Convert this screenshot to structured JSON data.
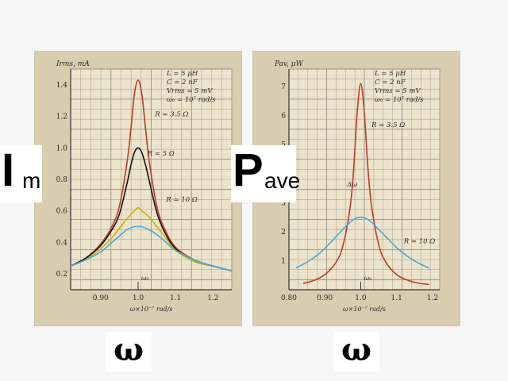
{
  "labels": {
    "left_symbol": "I",
    "left_subscript": "m",
    "right_symbol": "P",
    "right_subscript": "ave",
    "omega_left": "ω",
    "omega_right": "ω"
  },
  "colors": {
    "panel": "#d9cdb0",
    "grid": "#9a9488",
    "axis": "#333333",
    "red_curve": "#c0392b",
    "black_curve": "#111111",
    "yellow_curve": "#c9b400",
    "blue_curve": "#4aa8d6",
    "text": "#2a2a2a"
  },
  "chart_data": [
    {
      "type": "line",
      "ylabel": "Irms, mA",
      "xlabel": "ω×10⁻⁷ rad/s",
      "xlim": [
        0.82,
        1.25
      ],
      "ylim": [
        0.1,
        1.5
      ],
      "xticks": [
        0.9,
        1.0,
        1.1,
        1.2
      ],
      "xtick_labels": [
        "0.90",
        "1.0",
        "1.1",
        "1.2"
      ],
      "yticks": [
        0.2,
        0.4,
        0.6,
        0.8,
        1.0,
        1.2,
        1.4
      ],
      "ytick_labels": [
        "0.2",
        "0.4",
        "0.6",
        "0.8",
        "1.0",
        "1.2",
        "1.4"
      ],
      "params": [
        "L = 5 μH",
        "C = 2 nF",
        "Vrms = 5 mV",
        "ω₀ = 10⁷ rad/s"
      ],
      "annotations": {
        "r1": "R = 3.5 Ω",
        "r2": "R = 5 Ω",
        "r3": "R = 10 Ω",
        "omega0": "ω₀"
      },
      "series": [
        {
          "color_key": "red_curve",
          "x": [
            0.82,
            0.86,
            0.9,
            0.93,
            0.95,
            0.97,
            0.98,
            0.99,
            1.0,
            1.01,
            1.02,
            1.03,
            1.05,
            1.07,
            1.1,
            1.15,
            1.2,
            1.25
          ],
          "y": [
            0.25,
            0.3,
            0.39,
            0.5,
            0.63,
            0.9,
            1.1,
            1.34,
            1.43,
            1.34,
            1.12,
            0.91,
            0.63,
            0.49,
            0.37,
            0.29,
            0.25,
            0.22
          ]
        },
        {
          "color_key": "black_curve",
          "x": [
            0.82,
            0.86,
            0.9,
            0.93,
            0.95,
            0.97,
            0.98,
            0.99,
            1.0,
            1.01,
            1.02,
            1.03,
            1.05,
            1.07,
            1.1,
            1.15,
            1.2,
            1.25
          ],
          "y": [
            0.25,
            0.3,
            0.38,
            0.48,
            0.58,
            0.77,
            0.88,
            0.97,
            1.0,
            0.97,
            0.89,
            0.79,
            0.59,
            0.47,
            0.36,
            0.28,
            0.25,
            0.22
          ]
        },
        {
          "color_key": "yellow_curve",
          "x": [
            0.82,
            0.86,
            0.9,
            0.93,
            0.95,
            0.97,
            0.99,
            1.0,
            1.01,
            1.03,
            1.05,
            1.07,
            1.1,
            1.15,
            1.2,
            1.25
          ],
          "y": [
            0.25,
            0.29,
            0.36,
            0.43,
            0.49,
            0.55,
            0.6,
            0.62,
            0.6,
            0.56,
            0.5,
            0.44,
            0.35,
            0.28,
            0.25,
            0.22
          ]
        },
        {
          "color_key": "blue_curve",
          "x": [
            0.82,
            0.86,
            0.9,
            0.93,
            0.95,
            0.97,
            0.99,
            1.0,
            1.01,
            1.03,
            1.05,
            1.07,
            1.1,
            1.15,
            1.2,
            1.25
          ],
          "y": [
            0.25,
            0.29,
            0.34,
            0.4,
            0.44,
            0.48,
            0.5,
            0.5,
            0.5,
            0.48,
            0.45,
            0.41,
            0.35,
            0.29,
            0.25,
            0.22
          ]
        }
      ]
    },
    {
      "type": "line",
      "ylabel": "Pav, μW",
      "xlabel": "ω×10⁻⁷ rad/s",
      "xlim": [
        0.8,
        1.22
      ],
      "ylim": [
        0,
        7.6
      ],
      "xticks": [
        0.8,
        0.9,
        1.0,
        1.1,
        1.2
      ],
      "xtick_labels": [
        "0.80",
        "0.90",
        "1.0",
        "1.1",
        "1.2"
      ],
      "yticks": [
        1,
        2,
        3,
        4,
        5,
        6,
        7
      ],
      "ytick_labels": [
        "1",
        "2",
        "3",
        "4",
        "5",
        "6",
        "7"
      ],
      "params": [
        "L = 5 μH",
        "C = 2 nF",
        "Vrms = 5 mV",
        "ω₀ = 10⁷ rad/s"
      ],
      "annotations": {
        "r1": "R = 3.5 Ω",
        "r2": "R = 10 Ω",
        "delta": "Δω",
        "omega0": "ω₀"
      },
      "series": [
        {
          "color_key": "red_curve",
          "x": [
            0.84,
            0.87,
            0.9,
            0.93,
            0.95,
            0.97,
            0.98,
            0.99,
            1.0,
            1.01,
            1.02,
            1.03,
            1.05,
            1.07,
            1.1,
            1.13,
            1.16,
            1.19
          ],
          "y": [
            0.22,
            0.32,
            0.52,
            0.92,
            1.5,
            2.8,
            4.1,
            6.1,
            7.1,
            6.1,
            4.2,
            2.9,
            1.55,
            0.95,
            0.52,
            0.33,
            0.23,
            0.18
          ]
        },
        {
          "color_key": "blue_curve",
          "x": [
            0.82,
            0.85,
            0.88,
            0.91,
            0.94,
            0.96,
            0.98,
            1.0,
            1.02,
            1.04,
            1.06,
            1.08,
            1.1,
            1.13,
            1.16,
            1.19
          ],
          "y": [
            0.75,
            0.95,
            1.2,
            1.55,
            1.95,
            2.2,
            2.42,
            2.5,
            2.42,
            2.2,
            1.95,
            1.7,
            1.45,
            1.15,
            0.92,
            0.75
          ]
        }
      ]
    }
  ]
}
